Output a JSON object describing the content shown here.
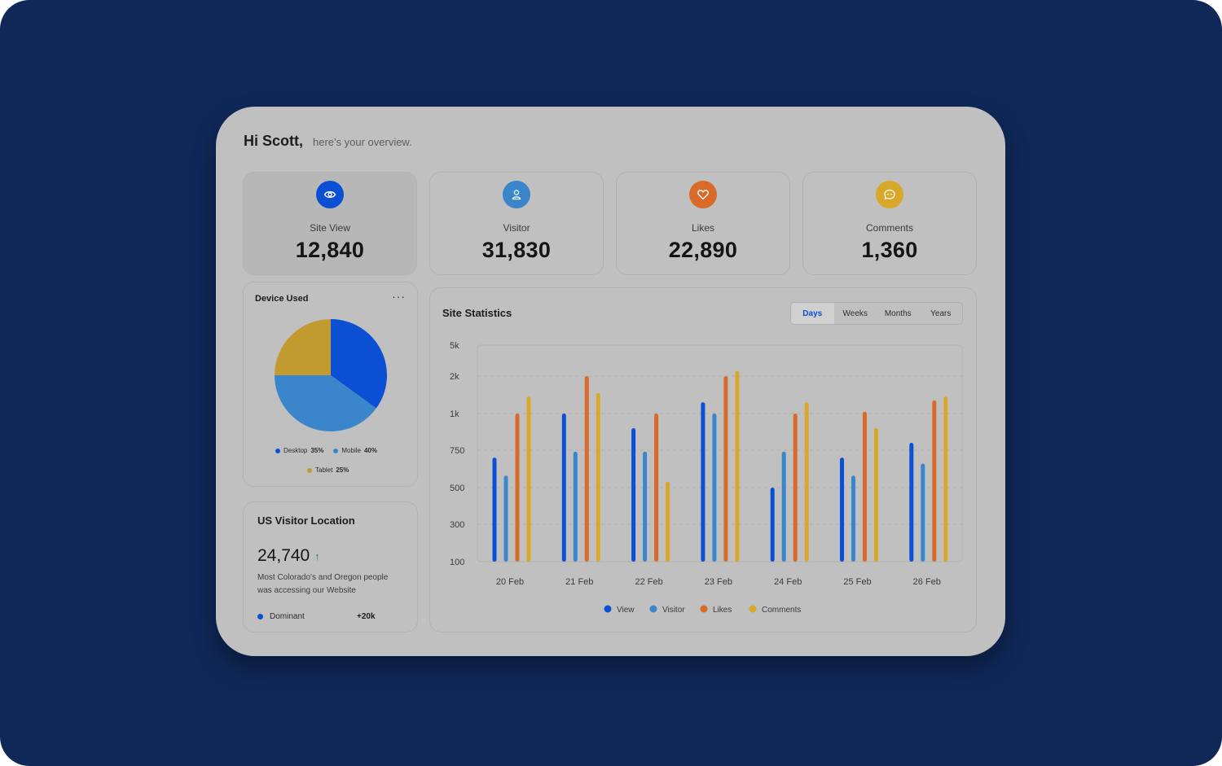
{
  "greeting": {
    "name": "Hi Scott,",
    "subtitle": "here's your overview."
  },
  "stats": [
    {
      "label": "Site View",
      "value": "12,840",
      "icon": "eye-icon",
      "color": "#0b4fd4"
    },
    {
      "label": "Visitor",
      "value": "31,830",
      "icon": "user-icon",
      "color": "#3b86cb"
    },
    {
      "label": "Likes",
      "value": "22,890",
      "icon": "heart-icon",
      "color": "#d96a2a"
    },
    {
      "label": "Comments",
      "value": "1,360",
      "icon": "chat-icon",
      "color": "#d8a82a"
    }
  ],
  "device": {
    "title": "Device Used",
    "menu": "···",
    "legend": [
      {
        "label": "Desktop",
        "pct": "35%",
        "color": "#0b4fd4"
      },
      {
        "label": "Mobile",
        "pct": "40%",
        "color": "#3b86cb"
      },
      {
        "label": "Tablet",
        "pct": "25%",
        "color": "#c19a30"
      }
    ]
  },
  "visitor_location": {
    "title": "US Visitor Location",
    "value": "24,740",
    "trend": "↑",
    "description": "Most Colorado's and Oregon people was accessing our Website",
    "dominant_label": "Dominant",
    "dominant_value": "+20k"
  },
  "site_statistics": {
    "title": "Site Statistics",
    "tabs": [
      "Days",
      "Weeks",
      "Months",
      "Years"
    ],
    "active_tab": "Days"
  },
  "chart_data": {
    "type": "bar",
    "title": "Site Statistics",
    "categories": [
      "20 Feb",
      "21 Feb",
      "22 Feb",
      "23 Feb",
      "24 Feb",
      "25 Feb",
      "26 Feb"
    ],
    "y_ticks": [
      "5k",
      "2k",
      "1k",
      "750",
      "500",
      "300",
      "100"
    ],
    "series": [
      {
        "name": "View",
        "color": "#0b4fd4",
        "values": [
          700,
          1000,
          900,
          1300,
          500,
          700,
          800
        ]
      },
      {
        "name": "Visitor",
        "color": "#3b86cb",
        "values": [
          580,
          740,
          740,
          1000,
          740,
          580,
          660
        ]
      },
      {
        "name": "Likes",
        "color": "#d96a2a",
        "values": [
          1000,
          2000,
          1000,
          2000,
          1000,
          1050,
          1350
        ]
      },
      {
        "name": "Comments",
        "color": "#d8a82a",
        "values": [
          1450,
          1550,
          540,
          2500,
          1300,
          900,
          1450
        ]
      }
    ],
    "grid": true,
    "legend_position": "bottom"
  },
  "pie_data": {
    "type": "pie",
    "categories": [
      "Desktop",
      "Mobile",
      "Tablet"
    ],
    "values": [
      35,
      40,
      25
    ]
  }
}
